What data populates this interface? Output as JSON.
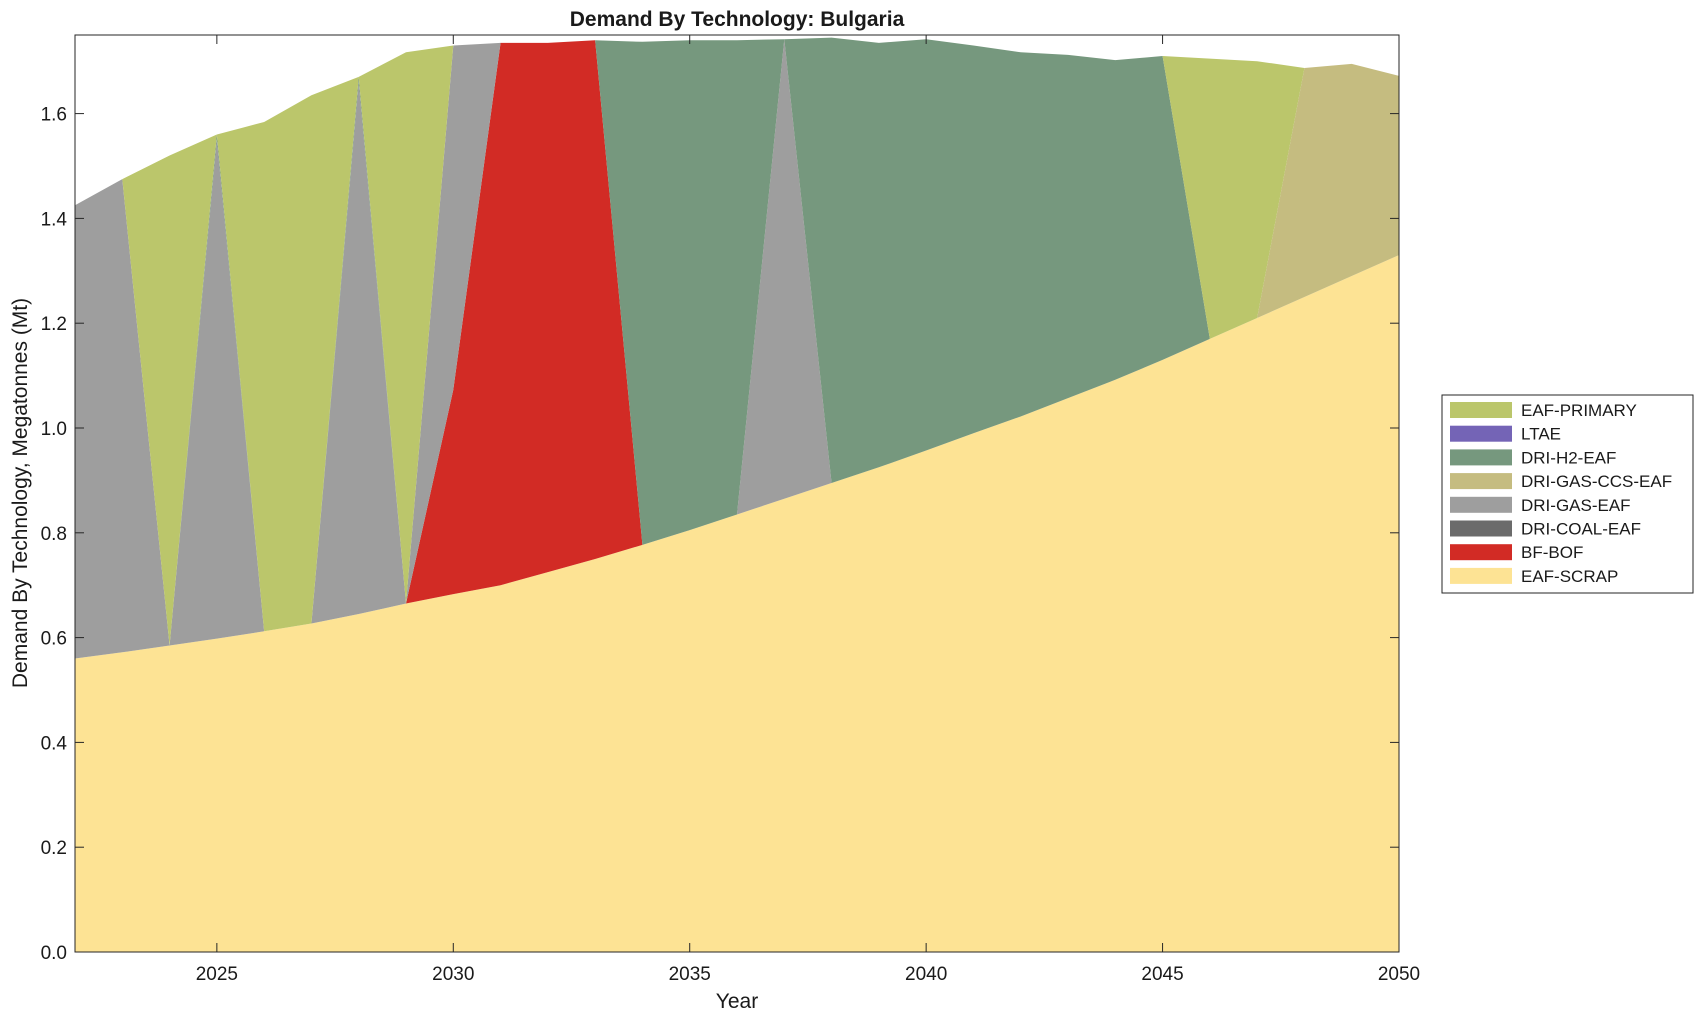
{
  "chart_data": {
    "type": "area",
    "title": "Demand By Technology: Bulgaria",
    "xlabel": "Year",
    "ylabel": "Demand By Technology, Megatonnes (Mt)",
    "xlim": [
      2022,
      2050
    ],
    "ylim": [
      0,
      1.75
    ],
    "xticks": [
      2025,
      2030,
      2035,
      2040,
      2045,
      2050
    ],
    "yticks": [
      0.0,
      0.2,
      0.4,
      0.6,
      0.8,
      1.0,
      1.2,
      1.4,
      1.6
    ],
    "ytick_labels": [
      "0.0",
      "0.2",
      "0.4",
      "0.6",
      "0.8",
      "1.0",
      "1.2",
      "1.4",
      "1.6"
    ],
    "grid": false,
    "legend_position": "right",
    "x": [
      2022,
      2023,
      2024,
      2025,
      2026,
      2027,
      2028,
      2029,
      2030,
      2031,
      2032,
      2033,
      2034,
      2035,
      2036,
      2037,
      2038,
      2039,
      2040,
      2041,
      2042,
      2043,
      2044,
      2045,
      2046,
      2047,
      2048,
      2049,
      2050
    ],
    "series": [
      {
        "name": "EAF-SCRAP",
        "color": "#fde394",
        "values": [
          0.56,
          0.572,
          0.585,
          0.598,
          0.612,
          0.627,
          0.645,
          0.665,
          0.683,
          0.7,
          0.725,
          0.75,
          0.777,
          0.805,
          0.835,
          0.865,
          0.895,
          0.925,
          0.957,
          0.99,
          1.022,
          1.057,
          1.092,
          1.13,
          1.17,
          1.21,
          1.25,
          1.29,
          1.33
        ]
      },
      {
        "name": "BF-BOF",
        "color": "#d22b25",
        "values": [
          0,
          0,
          0,
          0,
          0,
          0,
          0,
          0,
          0.39,
          1.035,
          1.01,
          0.99,
          0,
          0,
          0,
          0,
          0,
          0,
          0,
          0,
          0,
          0,
          0,
          0,
          0,
          0,
          0,
          0,
          0
        ]
      },
      {
        "name": "DRI-COAL-EAF",
        "color": "#6b6b6b",
        "values": [
          0,
          0,
          0,
          0,
          0,
          0,
          0,
          0,
          0,
          0,
          0,
          0,
          0,
          0,
          0,
          0,
          0,
          0,
          0,
          0,
          0,
          0,
          0,
          0,
          0,
          0,
          0,
          0,
          0
        ]
      },
      {
        "name": "DRI-GAS-EAF",
        "color": "#9e9e9e",
        "values": [
          0.865,
          0.903,
          0,
          0.952,
          0,
          0,
          1.015,
          0,
          0.657,
          0,
          0,
          0,
          0,
          0,
          0,
          0.877,
          0,
          0,
          0,
          0,
          0,
          0,
          0,
          0,
          0,
          0,
          0,
          0,
          0
        ]
      },
      {
        "name": "DRI-GAS-CCS-EAF",
        "color": "#c5bc80",
        "values": [
          0,
          0,
          0,
          0,
          0,
          0,
          0,
          0,
          0,
          0,
          0,
          0,
          0,
          0,
          0,
          0,
          0,
          0,
          0,
          0,
          0,
          0,
          0,
          0,
          0,
          0,
          0.437,
          0.405,
          0.342
        ]
      },
      {
        "name": "DRI-H2-EAF",
        "color": "#76987e",
        "values": [
          0,
          0,
          0,
          0.01,
          0,
          0,
          0.01,
          0,
          0,
          0,
          0,
          0,
          0.96,
          0.935,
          0.905,
          0,
          0.85,
          0.81,
          0.785,
          0.74,
          0.695,
          0.655,
          0.61,
          0.58,
          0,
          0,
          0,
          0,
          0
        ]
      },
      {
        "name": "LTAE",
        "color": "#7464b6",
        "values": [
          0,
          0,
          0,
          0,
          0,
          0,
          0,
          0,
          0,
          0,
          0,
          0,
          0,
          0,
          0,
          0,
          0,
          0,
          0,
          0,
          0,
          0,
          0,
          0,
          0,
          0,
          0,
          0,
          0
        ]
      },
      {
        "name": "EAF-PRIMARY",
        "color": "#bbc66b",
        "values": [
          0,
          0,
          0.935,
          0,
          0.972,
          1.008,
          0,
          1.052,
          0,
          0,
          0,
          0,
          0,
          0,
          0,
          0,
          0,
          0,
          0,
          0,
          0,
          0,
          0,
          0,
          0.535,
          0.49,
          0,
          0,
          0
        ]
      }
    ],
    "legend_order": [
      "EAF-PRIMARY",
      "LTAE",
      "DRI-H2-EAF",
      "DRI-GAS-CCS-EAF",
      "DRI-GAS-EAF",
      "DRI-COAL-EAF",
      "BF-BOF",
      "EAF-SCRAP"
    ]
  }
}
